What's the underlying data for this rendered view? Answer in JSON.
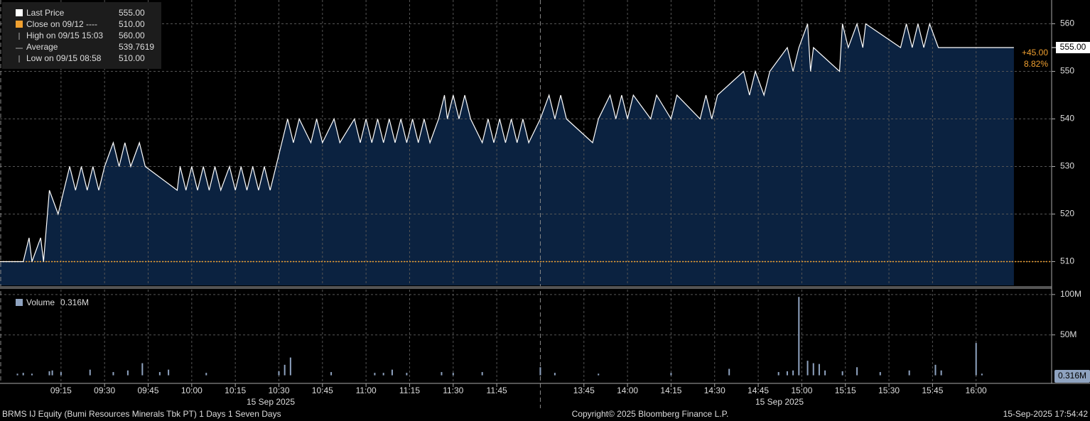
{
  "chart_data": [
    {
      "type": "area",
      "legend": [
        {
          "label": "Last Price",
          "value_label": "555.00"
        },
        {
          "label": "Close on 09/12 ----",
          "value_label": "510.00"
        },
        {
          "label": "High on 09/15 15:03",
          "value_label": "560.00"
        },
        {
          "label": "Average",
          "value_label": "539.7619"
        },
        {
          "label": "Low on 09/15 08:58",
          "value_label": "510.00"
        }
      ],
      "x": [
        "08:54",
        "08:58",
        "09:02",
        "09:04",
        "09:05",
        "09:08",
        "09:09",
        "09:11",
        "09:14",
        "09:16",
        "09:18",
        "09:20",
        "09:22",
        "09:24",
        "09:26",
        "09:28",
        "09:30",
        "09:33",
        "09:35",
        "09:37",
        "09:39",
        "09:42",
        "09:44",
        "09:55",
        "09:56",
        "09:58",
        "10:00",
        "10:02",
        "10:04",
        "10:06",
        "10:08",
        "10:10",
        "10:13",
        "10:15",
        "10:17",
        "10:19",
        "10:21",
        "10:23",
        "10:25",
        "10:27",
        "10:29",
        "10:33",
        "10:35",
        "10:37",
        "10:41",
        "10:43",
        "10:45",
        "10:49",
        "10:51",
        "10:56",
        "10:58",
        "11:00",
        "11:02",
        "11:04",
        "11:06",
        "11:08",
        "11:10",
        "11:12",
        "11:14",
        "11:16",
        "11:18",
        "11:20",
        "11:22",
        "11:25",
        "11:27",
        "11:28",
        "11:30",
        "11:32",
        "11:34",
        "11:36",
        "11:40",
        "11:42",
        "11:44",
        "11:46",
        "11:48",
        "11:50",
        "11:52",
        "11:54",
        "11:56",
        "12:00",
        "13:33",
        "13:35",
        "13:37",
        "13:39",
        "13:48",
        "13:50",
        "13:54",
        "13:56",
        "13:58",
        "14:00",
        "14:02",
        "14:08",
        "14:10",
        "14:15",
        "14:17",
        "14:25",
        "14:27",
        "14:29",
        "14:31",
        "14:40",
        "14:42",
        "14:44",
        "14:47",
        "14:49",
        "14:55",
        "14:57",
        "14:59",
        "15:02",
        "15:03",
        "15:04",
        "15:13",
        "15:14",
        "15:16",
        "15:19",
        "15:21",
        "15:22",
        "15:34",
        "15:36",
        "15:38",
        "15:40",
        "15:42",
        "15:44",
        "15:47",
        "16:13"
      ],
      "values": [
        510,
        510,
        510,
        515,
        510,
        515,
        510,
        525,
        520,
        525,
        530,
        525,
        530,
        525,
        530,
        525,
        530,
        535,
        530,
        535,
        530,
        535,
        530,
        525,
        530,
        525,
        530,
        525,
        530,
        525,
        530,
        525,
        530,
        525,
        530,
        525,
        530,
        525,
        530,
        525,
        530,
        540,
        535,
        540,
        535,
        540,
        535,
        540,
        535,
        540,
        535,
        540,
        535,
        540,
        535,
        540,
        535,
        540,
        535,
        540,
        535,
        540,
        535,
        540,
        545,
        540,
        545,
        540,
        545,
        540,
        535,
        540,
        535,
        540,
        535,
        540,
        535,
        540,
        535,
        540,
        545,
        540,
        545,
        540,
        535,
        540,
        545,
        540,
        545,
        540,
        545,
        540,
        545,
        540,
        545,
        540,
        545,
        540,
        545,
        550,
        545,
        550,
        545,
        550,
        555,
        550,
        555,
        560,
        550,
        555,
        550,
        560,
        555,
        560,
        555,
        560,
        555,
        560,
        555,
        560,
        555,
        560,
        555,
        555
      ],
      "color": "#ffffff",
      "fill": "#0b2240",
      "reference_line": 510,
      "reference_color": "#f0a030",
      "last_value": 555,
      "last_label": "555.00",
      "change_labels": [
        "+45.00",
        "8.82%"
      ],
      "ylim": [
        505,
        565
      ],
      "yticks": [
        510,
        520,
        530,
        540,
        550,
        560
      ],
      "grid": true
    },
    {
      "type": "bar",
      "series": [
        {
          "name": "Volume",
          "color": "#8fa3c0",
          "value_label": "0.316M",
          "x": [
            "09:00",
            "09:02",
            "09:05",
            "09:11",
            "09:12",
            "09:15",
            "09:25",
            "09:33",
            "09:38",
            "09:43",
            "09:49",
            "09:52",
            "10:05",
            "10:30",
            "10:32",
            "10:34",
            "10:48",
            "11:03",
            "11:06",
            "11:09",
            "11:14",
            "11:26",
            "11:30",
            "11:40",
            "12:00",
            "13:35",
            "13:50",
            "14:15",
            "14:35",
            "14:52",
            "14:55",
            "14:57",
            "14:59",
            "15:02",
            "15:04",
            "15:06",
            "15:08",
            "15:14",
            "15:19",
            "15:27",
            "15:37",
            "15:46",
            "15:48",
            "16:00",
            "16:02"
          ],
          "values": [
            2,
            3,
            2,
            5,
            6,
            4,
            7,
            4,
            6,
            15,
            4,
            7,
            3,
            5,
            13,
            22,
            4,
            3,
            3,
            7,
            3,
            4,
            3,
            4,
            10,
            3,
            2,
            3,
            8,
            4,
            5,
            6,
            97,
            18,
            15,
            14,
            6,
            5,
            10,
            4,
            6,
            13,
            6,
            40,
            2
          ]
        }
      ],
      "ylim": [
        -10,
        106
      ],
      "yticks": [
        {
          "value": 50,
          "label": "50M"
        },
        {
          "value": 100,
          "label": "100M"
        }
      ],
      "xlim": [
        "08:54",
        "16:26"
      ],
      "break": [
        "12:00",
        "13:30"
      ],
      "xticks": [
        "09:15",
        "09:30",
        "09:45",
        "10:00",
        "10:15",
        "10:30",
        "10:45",
        "11:00",
        "11:15",
        "11:30",
        "11:45",
        "13:45",
        "14:00",
        "14:15",
        "14:30",
        "14:45",
        "15:00",
        "15:15",
        "15:30",
        "15:45",
        "16:00"
      ],
      "date_labels": [
        "15 Sep 2025",
        "15 Sep 2025"
      ],
      "grid": true
    }
  ],
  "footer": {
    "left": "BRMS IJ Equity (Bumi Resources Minerals Tbk PT) 1 Days 1 Seven Days",
    "center": "Copyright© 2025 Bloomberg Finance L.P.",
    "right": "15-Sep-2025 17:54:42"
  }
}
